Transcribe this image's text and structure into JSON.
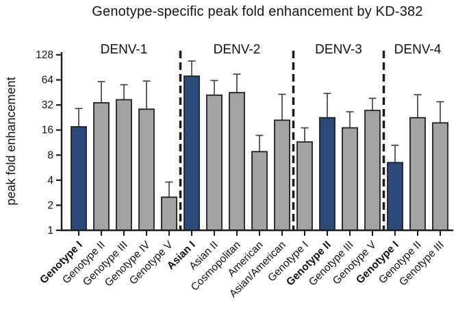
{
  "chart_data": {
    "type": "bar",
    "title": "Genotype-specific peak fold enhancement by KD-382",
    "ylabel": "peak fold enhancement",
    "xlabel": "",
    "scale": "log2",
    "ylim": [
      1,
      128
    ],
    "yticks": [
      1,
      2,
      4,
      8,
      16,
      32,
      64,
      128
    ],
    "grid": false,
    "legend": "none",
    "error_bars": "upper only, capped",
    "separator_style": "vertical dashed black lines between serotype groups",
    "groups": [
      {
        "label": "DENV-1",
        "bars": [
          {
            "category": "Genotype I",
            "value": 17.5,
            "error_top": 29,
            "highlight": true,
            "bold": true
          },
          {
            "category": "Genotype II",
            "value": 34,
            "error_top": 61,
            "highlight": false,
            "bold": false
          },
          {
            "category": "Genotype III",
            "value": 37,
            "error_top": 56,
            "highlight": false,
            "bold": false
          },
          {
            "category": "Genotype IV",
            "value": 28.5,
            "error_top": 62,
            "highlight": false,
            "bold": false
          },
          {
            "category": "Genotype V",
            "value": 2.5,
            "error_top": 3.8,
            "highlight": false,
            "bold": false
          }
        ]
      },
      {
        "label": "DENV-2",
        "bars": [
          {
            "category": "Asian I",
            "value": 71,
            "error_top": 108,
            "highlight": true,
            "bold": true
          },
          {
            "category": "Asian II",
            "value": 42,
            "error_top": 63,
            "highlight": false,
            "bold": false
          },
          {
            "category": "Cosmopolitan",
            "value": 45,
            "error_top": 75,
            "highlight": false,
            "bold": false
          },
          {
            "category": "American",
            "value": 8.8,
            "error_top": 13.8,
            "highlight": false,
            "bold": false
          },
          {
            "category": "Asian/American",
            "value": 21,
            "error_top": 43,
            "highlight": false,
            "bold": false
          }
        ]
      },
      {
        "label": "DENV-3",
        "bars": [
          {
            "category": "Genotype I",
            "value": 11.5,
            "error_top": 17,
            "highlight": false,
            "bold": false
          },
          {
            "category": "Genotype II",
            "value": 22.5,
            "error_top": 44,
            "highlight": true,
            "bold": true
          },
          {
            "category": "Genotype III",
            "value": 17,
            "error_top": 26.5,
            "highlight": false,
            "bold": false
          },
          {
            "category": "Genotype V",
            "value": 27.5,
            "error_top": 38.5,
            "highlight": false,
            "bold": false
          }
        ]
      },
      {
        "label": "DENV-4",
        "bars": [
          {
            "category": "Genotype I",
            "value": 6.5,
            "error_top": 10.5,
            "highlight": true,
            "bold": true
          },
          {
            "category": "Genotype II",
            "value": 22.5,
            "error_top": 42.5,
            "highlight": false,
            "bold": false
          },
          {
            "category": "Genotype III",
            "value": 19.5,
            "error_top": 35,
            "highlight": false,
            "bold": false
          }
        ]
      }
    ],
    "colors": {
      "highlight_bar": "#2a4a7b",
      "default_bar": "#a3a3a3",
      "bar_outline": "#1f1f1f",
      "axis": "#1a1a1a",
      "error_bar": "#3a3a3a",
      "text": "#111111"
    }
  }
}
